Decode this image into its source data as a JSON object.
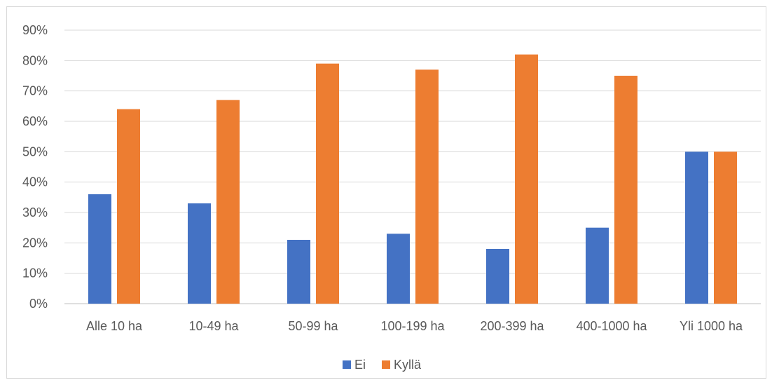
{
  "chart_data": {
    "type": "bar",
    "categories": [
      "Alle 10 ha",
      "10-49 ha",
      "50-99 ha",
      "100-199 ha",
      "200-399 ha",
      "400-1000 ha",
      "Yli 1000 ha"
    ],
    "series": [
      {
        "name": "Ei",
        "color": "#4472c4",
        "values": [
          36,
          33,
          21,
          23,
          18,
          25,
          50
        ]
      },
      {
        "name": "Kyllä",
        "color": "#ed7d31",
        "values": [
          64,
          67,
          79,
          77,
          82,
          75,
          50
        ]
      }
    ],
    "yticks": [
      "0%",
      "10%",
      "20%",
      "30%",
      "40%",
      "50%",
      "60%",
      "70%",
      "80%",
      "90%"
    ],
    "ylim": [
      0,
      90
    ],
    "grid": true,
    "legend": "bottom",
    "title": "",
    "xlabel": "",
    "ylabel": ""
  }
}
